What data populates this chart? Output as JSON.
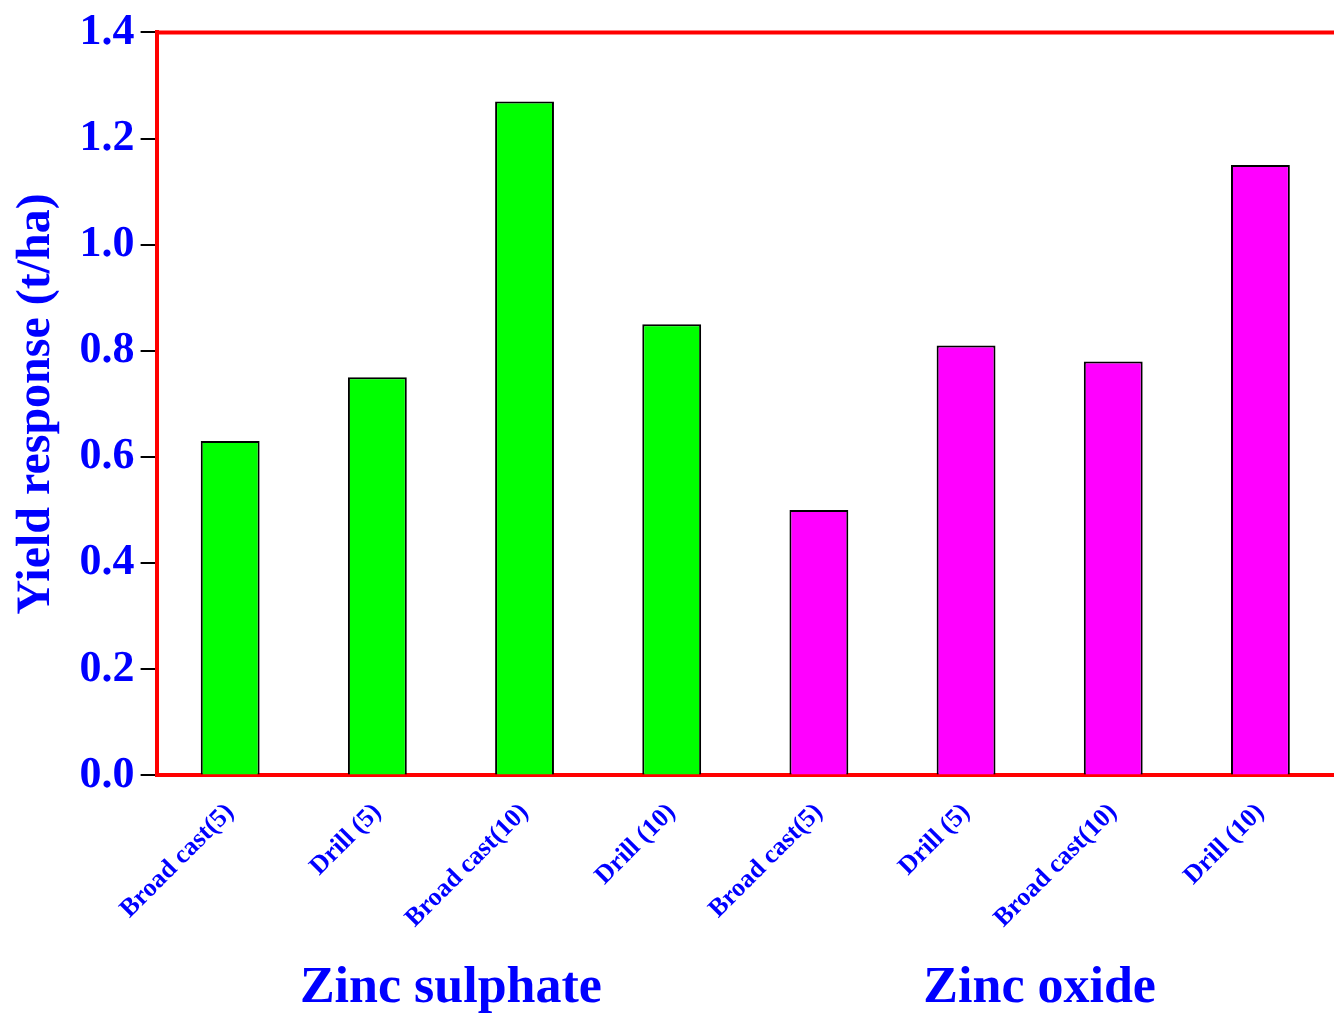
{
  "chart_data": {
    "type": "bar",
    "ylabel": "Yield response (t/ha)",
    "categories": [
      "Broad cast(5)",
      "Drill (5)",
      "Broad cast(10)",
      "Drill (10)",
      "Broad cast(5)",
      "Drill (5)",
      "Broad cast(10)",
      "Drill (10)"
    ],
    "values": [
      0.63,
      0.75,
      1.27,
      0.85,
      0.5,
      0.81,
      0.78,
      1.15
    ],
    "colors": [
      "#00ff00",
      "#00ff00",
      "#00ff00",
      "#00ff00",
      "#ff00ff",
      "#ff00ff",
      "#ff00ff",
      "#ff00ff"
    ],
    "ylim": [
      0,
      1.4
    ],
    "yticks": [
      {
        "value": 0,
        "label": "0.0"
      },
      {
        "value": 0.2,
        "label": "0.2"
      },
      {
        "value": 0.4,
        "label": "0.4"
      },
      {
        "value": 0.6,
        "label": "0.6"
      },
      {
        "value": 0.8,
        "label": "0.8"
      },
      {
        "value": 1,
        "label": "1.0"
      },
      {
        "value": 1.2,
        "label": "1.2"
      },
      {
        "value": 1.4,
        "label": "1.4"
      }
    ],
    "grid": false,
    "legend": false,
    "annotations": [
      "Zinc sulphate",
      "Zinc oxide"
    ]
  }
}
